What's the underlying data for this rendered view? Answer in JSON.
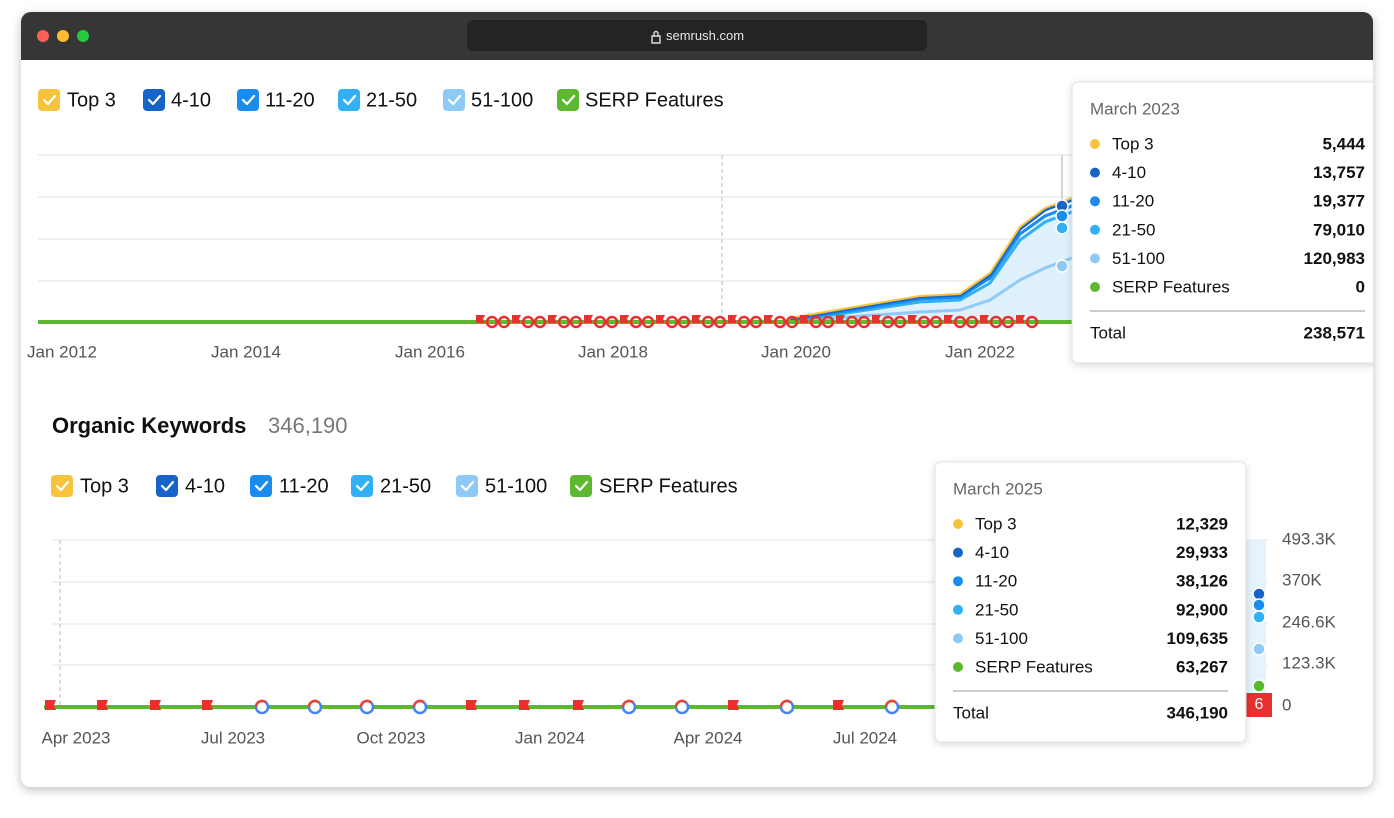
{
  "browser": {
    "url": "semrush.com"
  },
  "top_chart": {
    "legend": [
      {
        "label": "Top 3",
        "color": "#f7c33c"
      },
      {
        "label": "4-10",
        "color": "#1764c8"
      },
      {
        "label": "11-20",
        "color": "#1a8cf0"
      },
      {
        "label": "21-50",
        "color": "#32b0f5"
      },
      {
        "label": "51-100",
        "color": "#8fcaf6"
      },
      {
        "label": "SERP Features",
        "color": "#5cb82e"
      }
    ],
    "x_labels": [
      "Jan 2012",
      "Jan 2014",
      "Jan 2016",
      "Jan 2018",
      "Jan 2020",
      "Jan 2022"
    ],
    "tooltip": {
      "title": "March 2023",
      "rows": [
        {
          "label": "Top 3",
          "value": "5,444"
        },
        {
          "label": "4-10",
          "value": "13,757"
        },
        {
          "label": "11-20",
          "value": "19,377"
        },
        {
          "label": "21-50",
          "value": "79,010"
        },
        {
          "label": "51-100",
          "value": "120,983"
        },
        {
          "label": "SERP Features",
          "value": "0"
        }
      ],
      "total_label": "Total",
      "total": "238,571"
    }
  },
  "organic_keywords": {
    "title": "Organic Keywords",
    "count": "346,190",
    "legend": [
      {
        "label": "Top 3",
        "color": "#f7c33c"
      },
      {
        "label": "4-10",
        "color": "#1764c8"
      },
      {
        "label": "11-20",
        "color": "#1a8cf0"
      },
      {
        "label": "21-50",
        "color": "#32b0f5"
      },
      {
        "label": "51-100",
        "color": "#8fcaf6"
      },
      {
        "label": "SERP Features",
        "color": "#5cb82e"
      }
    ],
    "x_labels": [
      "Apr 2023",
      "Jul 2023",
      "Oct 2023",
      "Jan 2024",
      "Apr 2024",
      "Jul 2024"
    ],
    "y_ticks": [
      "493.3K",
      "370K",
      "246.6K",
      "123.3K",
      "0"
    ],
    "badge": "6",
    "tooltip": {
      "title": "March 2025",
      "rows": [
        {
          "label": "Top 3",
          "value": "12,329"
        },
        {
          "label": "4-10",
          "value": "29,933"
        },
        {
          "label": "11-20",
          "value": "38,126"
        },
        {
          "label": "21-50",
          "value": "92,900"
        },
        {
          "label": "51-100",
          "value": "109,635"
        },
        {
          "label": "SERP Features",
          "value": "63,267"
        }
      ],
      "total_label": "Total",
      "total": "346,190"
    }
  }
}
